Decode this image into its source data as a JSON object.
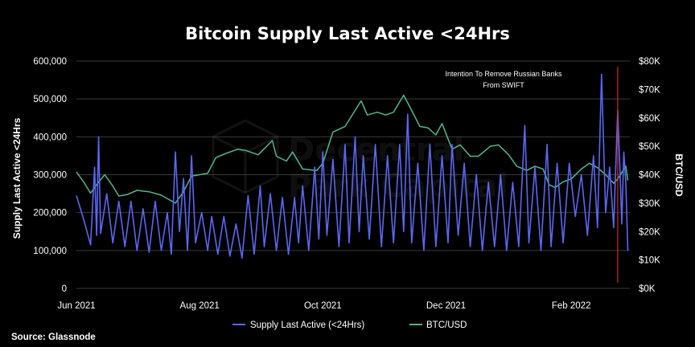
{
  "chart_data": {
    "type": "line",
    "title": "Bitcoin Supply Last Active <24Hrs",
    "ylabel": "Supply Last Active <24Hrs",
    "y2label": "BTC/USD",
    "ylim": [
      0,
      600000
    ],
    "y2lim": [
      0,
      80000
    ],
    "x_range": [
      "2021-06-01",
      "2022-03-02"
    ],
    "x_ticks": [
      {
        "date": "2021-06-01",
        "label": "Jun 2021"
      },
      {
        "date": "2021-08-01",
        "label": "Aug 2021"
      },
      {
        "date": "2021-10-01",
        "label": "Oct 2021"
      },
      {
        "date": "2021-12-01",
        "label": "Dec 2021"
      },
      {
        "date": "2022-02-01",
        "label": "Feb 2022"
      }
    ],
    "y_ticks": [
      "0",
      "100,000",
      "200,000",
      "300,000",
      "400,000",
      "500,000",
      "600,000"
    ],
    "y2_ticks": [
      "$0K",
      "$10K",
      "$20K",
      "$30K",
      "$40K",
      "$50K",
      "$60K",
      "$70K",
      "$80K"
    ],
    "grid": "horizontal",
    "legend_position": "bottom-center",
    "series": [
      {
        "name": "Supply Last Active (<24Hrs)",
        "axis": "left",
        "color": "#5a67f2",
        "points": [
          [
            "2021-06-01",
            245000
          ],
          [
            "2021-06-05",
            175000
          ],
          [
            "2021-06-08",
            115000
          ],
          [
            "2021-06-10",
            320000
          ],
          [
            "2021-06-11",
            140000
          ],
          [
            "2021-06-12",
            400000
          ],
          [
            "2021-06-13",
            145000
          ],
          [
            "2021-06-16",
            250000
          ],
          [
            "2021-06-19",
            120000
          ],
          [
            "2021-06-22",
            230000
          ],
          [
            "2021-06-25",
            110000
          ],
          [
            "2021-06-28",
            230000
          ],
          [
            "2021-07-01",
            100000
          ],
          [
            "2021-07-04",
            210000
          ],
          [
            "2021-07-07",
            95000
          ],
          [
            "2021-07-10",
            230000
          ],
          [
            "2021-07-13",
            100000
          ],
          [
            "2021-07-16",
            200000
          ],
          [
            "2021-07-18",
            90000
          ],
          [
            "2021-07-20",
            360000
          ],
          [
            "2021-07-22",
            150000
          ],
          [
            "2021-07-24",
            290000
          ],
          [
            "2021-07-26",
            100000
          ],
          [
            "2021-07-28",
            350000
          ],
          [
            "2021-07-30",
            120000
          ],
          [
            "2021-08-02",
            200000
          ],
          [
            "2021-08-05",
            100000
          ],
          [
            "2021-08-07",
            190000
          ],
          [
            "2021-08-10",
            90000
          ],
          [
            "2021-08-13",
            190000
          ],
          [
            "2021-08-16",
            85000
          ],
          [
            "2021-08-19",
            170000
          ],
          [
            "2021-08-22",
            80000
          ],
          [
            "2021-08-25",
            245000
          ],
          [
            "2021-08-28",
            90000
          ],
          [
            "2021-08-31",
            270000
          ],
          [
            "2021-09-02",
            110000
          ],
          [
            "2021-09-05",
            250000
          ],
          [
            "2021-09-08",
            100000
          ],
          [
            "2021-09-11",
            240000
          ],
          [
            "2021-09-14",
            90000
          ],
          [
            "2021-09-17",
            240000
          ],
          [
            "2021-09-19",
            120000
          ],
          [
            "2021-09-21",
            270000
          ],
          [
            "2021-09-24",
            100000
          ],
          [
            "2021-09-27",
            320000
          ],
          [
            "2021-09-29",
            130000
          ],
          [
            "2021-10-01",
            360000
          ],
          [
            "2021-10-03",
            140000
          ],
          [
            "2021-10-06",
            340000
          ],
          [
            "2021-10-09",
            110000
          ],
          [
            "2021-10-12",
            380000
          ],
          [
            "2021-10-14",
            120000
          ],
          [
            "2021-10-17",
            400000
          ],
          [
            "2021-10-19",
            150000
          ],
          [
            "2021-10-21",
            350000
          ],
          [
            "2021-10-24",
            130000
          ],
          [
            "2021-10-27",
            380000
          ],
          [
            "2021-10-30",
            110000
          ],
          [
            "2021-11-02",
            350000
          ],
          [
            "2021-11-05",
            120000
          ],
          [
            "2021-11-08",
            380000
          ],
          [
            "2021-11-10",
            150000
          ],
          [
            "2021-11-12",
            460000
          ],
          [
            "2021-11-14",
            120000
          ],
          [
            "2021-11-17",
            330000
          ],
          [
            "2021-11-20",
            100000
          ],
          [
            "2021-11-23",
            380000
          ],
          [
            "2021-11-26",
            110000
          ],
          [
            "2021-11-29",
            350000
          ],
          [
            "2021-12-02",
            120000
          ],
          [
            "2021-12-04",
            380000
          ],
          [
            "2021-12-07",
            140000
          ],
          [
            "2021-12-10",
            330000
          ],
          [
            "2021-12-13",
            110000
          ],
          [
            "2021-12-16",
            300000
          ],
          [
            "2021-12-19",
            100000
          ],
          [
            "2021-12-22",
            280000
          ],
          [
            "2021-12-25",
            110000
          ],
          [
            "2021-12-28",
            300000
          ],
          [
            "2021-12-31",
            100000
          ],
          [
            "2022-01-03",
            280000
          ],
          [
            "2022-01-06",
            110000
          ],
          [
            "2022-01-09",
            430000
          ],
          [
            "2022-01-11",
            120000
          ],
          [
            "2022-01-14",
            320000
          ],
          [
            "2022-01-17",
            100000
          ],
          [
            "2022-01-20",
            380000
          ],
          [
            "2022-01-22",
            110000
          ],
          [
            "2022-01-25",
            330000
          ],
          [
            "2022-01-28",
            120000
          ],
          [
            "2022-01-31",
            330000
          ],
          [
            "2022-02-03",
            190000
          ],
          [
            "2022-02-06",
            300000
          ],
          [
            "2022-02-09",
            140000
          ],
          [
            "2022-02-12",
            350000
          ],
          [
            "2022-02-14",
            160000
          ],
          [
            "2022-02-16",
            565000
          ],
          [
            "2022-02-18",
            200000
          ],
          [
            "2022-02-20",
            320000
          ],
          [
            "2022-02-22",
            160000
          ],
          [
            "2022-02-24",
            470000
          ],
          [
            "2022-02-25",
            330000
          ],
          [
            "2022-02-26",
            170000
          ],
          [
            "2022-02-27",
            360000
          ],
          [
            "2022-02-28",
            280000
          ],
          [
            "2022-03-01",
            100000
          ]
        ]
      },
      {
        "name": "BTC/USD",
        "axis": "right",
        "color": "#4fb98a",
        "points": [
          [
            "2021-06-01",
            41000
          ],
          [
            "2021-06-05",
            37000
          ],
          [
            "2021-06-08",
            33500
          ],
          [
            "2021-06-11",
            36500
          ],
          [
            "2021-06-15",
            40000
          ],
          [
            "2021-06-19",
            36000
          ],
          [
            "2021-06-22",
            32500
          ],
          [
            "2021-06-26",
            33000
          ],
          [
            "2021-07-01",
            34500
          ],
          [
            "2021-07-07",
            34000
          ],
          [
            "2021-07-13",
            32800
          ],
          [
            "2021-07-20",
            30000
          ],
          [
            "2021-07-24",
            34000
          ],
          [
            "2021-07-28",
            39500
          ],
          [
            "2021-08-01",
            40000
          ],
          [
            "2021-08-05",
            40500
          ],
          [
            "2021-08-09",
            46000
          ],
          [
            "2021-08-14",
            47500
          ],
          [
            "2021-08-20",
            49000
          ],
          [
            "2021-08-24",
            48500
          ],
          [
            "2021-08-30",
            47000
          ],
          [
            "2021-09-06",
            52000
          ],
          [
            "2021-09-08",
            46500
          ],
          [
            "2021-09-13",
            44800
          ],
          [
            "2021-09-16",
            48000
          ],
          [
            "2021-09-21",
            42000
          ],
          [
            "2021-09-28",
            41500
          ],
          [
            "2021-10-01",
            44000
          ],
          [
            "2021-10-06",
            55000
          ],
          [
            "2021-10-12",
            57000
          ],
          [
            "2021-10-16",
            61500
          ],
          [
            "2021-10-20",
            66000
          ],
          [
            "2021-10-23",
            61000
          ],
          [
            "2021-10-28",
            62000
          ],
          [
            "2021-11-01",
            61000
          ],
          [
            "2021-11-05",
            62000
          ],
          [
            "2021-11-10",
            68000
          ],
          [
            "2021-11-13",
            64000
          ],
          [
            "2021-11-18",
            57000
          ],
          [
            "2021-11-22",
            56500
          ],
          [
            "2021-11-26",
            54000
          ],
          [
            "2021-11-29",
            58000
          ],
          [
            "2021-12-04",
            49000
          ],
          [
            "2021-12-08",
            50500
          ],
          [
            "2021-12-13",
            46500
          ],
          [
            "2021-12-17",
            46500
          ],
          [
            "2021-12-23",
            50000
          ],
          [
            "2021-12-27",
            50500
          ],
          [
            "2022-01-01",
            47000
          ],
          [
            "2022-01-05",
            43000
          ],
          [
            "2022-01-10",
            41500
          ],
          [
            "2022-01-14",
            43000
          ],
          [
            "2022-01-18",
            42000
          ],
          [
            "2022-01-21",
            36500
          ],
          [
            "2022-01-24",
            35500
          ],
          [
            "2022-01-28",
            37500
          ],
          [
            "2022-02-01",
            38500
          ],
          [
            "2022-02-06",
            42000
          ],
          [
            "2022-02-10",
            44000
          ],
          [
            "2022-02-14",
            42500
          ],
          [
            "2022-02-18",
            40000
          ],
          [
            "2022-02-22",
            37000
          ],
          [
            "2022-02-24",
            38500
          ],
          [
            "2022-02-28",
            43000
          ],
          [
            "2022-03-01",
            38000
          ]
        ]
      }
    ],
    "annotations": [
      {
        "date": "2022-02-24",
        "label": "Intention To Remove Russian Banks From SWIFT",
        "lines": [
          "Intention To Remove Russian Banks",
          "From SWIFT"
        ],
        "color": "#d62828"
      }
    ]
  },
  "legend": {
    "supply_label": "Supply Last Active (<24Hrs)",
    "price_label": "BTC/USD"
  },
  "watermark": {
    "line1": "Decentral",
    "line2": "Park Capital"
  },
  "source": "Source: Glassnode"
}
